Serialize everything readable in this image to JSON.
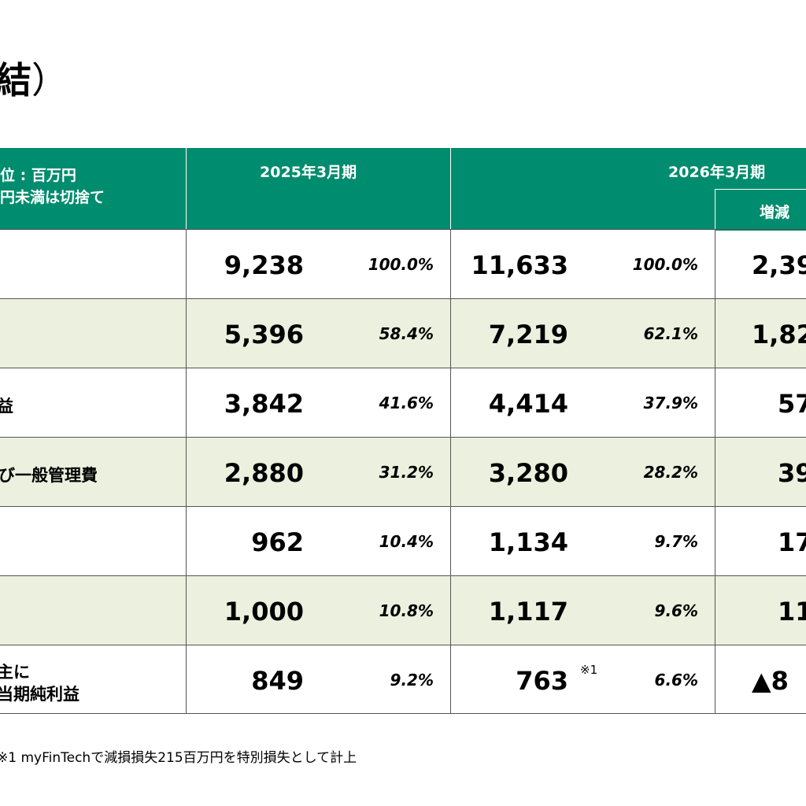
{
  "title": {
    "text": "結",
    "paren": "）"
  },
  "header": {
    "unit_line1": "位 : 百万円",
    "unit_line2": "円未満は切捨て",
    "col_2025": "2025年3月期",
    "col_2026": "2026年3月期",
    "col_change": "増減"
  },
  "rows": [
    {
      "label": "",
      "v2025": "9,238",
      "p2025": "100.0%",
      "v2026": "11,633",
      "p2026": "100.0%",
      "change": "2,39"
    },
    {
      "label": "",
      "v2025": "5,396",
      "p2025": "58.4%",
      "v2026": "7,219",
      "p2026": "62.1%",
      "change": "1,82"
    },
    {
      "label": "益",
      "v2025": "3,842",
      "p2025": "41.6%",
      "v2026": "4,414",
      "p2026": "37.9%",
      "change": "57"
    },
    {
      "label": "び一般管理費",
      "v2025": "2,880",
      "p2025": "31.2%",
      "v2026": "3,280",
      "p2026": "28.2%",
      "change": "39"
    },
    {
      "label": "",
      "v2025": "962",
      "p2025": "10.4%",
      "v2026": "1,134",
      "p2026": "9.7%",
      "change": "17"
    },
    {
      "label": "",
      "v2025": "1,000",
      "p2025": "10.8%",
      "v2026": "1,117",
      "p2026": "9.6%",
      "change": "11"
    },
    {
      "label_line1": "主に",
      "label_line2": "当期純利益",
      "v2025": "849",
      "p2025": "9.2%",
      "v2026": "763",
      "note": "※1",
      "p2026": "6.6%",
      "change": "▲8"
    }
  ],
  "footnote": "※1 myFinTechで減損損失215百万円を特別損失として計上"
}
